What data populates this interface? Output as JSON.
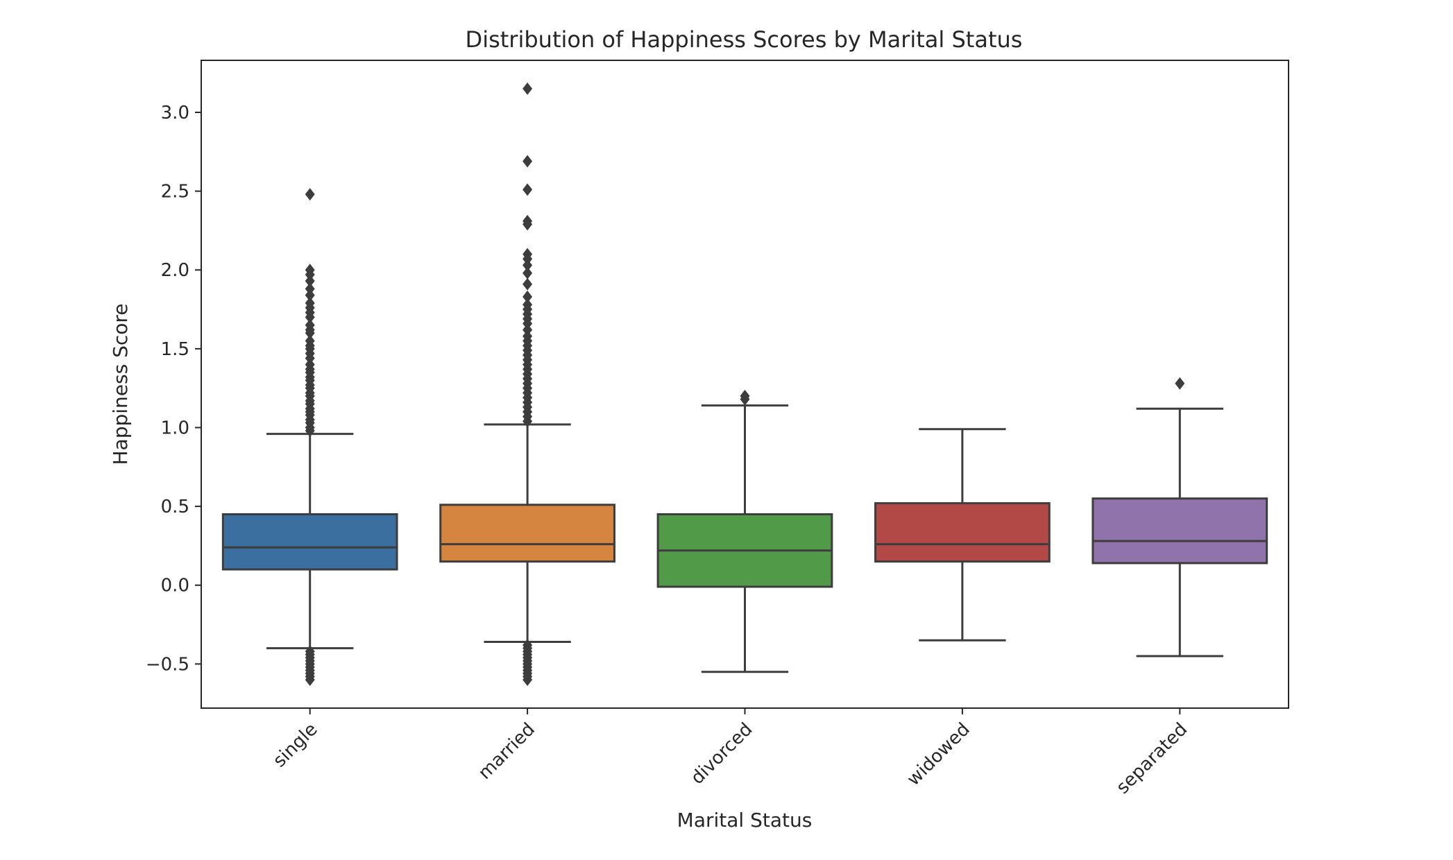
{
  "chart_data": {
    "type": "box",
    "title": "Distribution of Happiness Scores by Marital Status",
    "xlabel": "Marital Status",
    "ylabel": "Happiness Score",
    "ylim": [
      -0.78,
      3.33
    ],
    "yticks": [
      -0.5,
      0.0,
      0.5,
      1.0,
      1.5,
      2.0,
      2.5,
      3.0
    ],
    "ytick_labels": [
      "−0.5",
      "0.0",
      "0.5",
      "1.0",
      "1.5",
      "2.0",
      "2.5",
      "3.0"
    ],
    "grid": false,
    "legend": "none",
    "categories": [
      "single",
      "married",
      "divorced",
      "widowed",
      "separated"
    ],
    "boxes": [
      {
        "name": "single",
        "color": "#3a6f9f",
        "whisker_low": -0.4,
        "q1": 0.1,
        "median": 0.24,
        "q3": 0.45,
        "whisker_high": 0.96,
        "outliers": [
          2.48,
          2.0,
          1.97,
          1.93,
          1.88,
          1.84,
          1.79,
          1.76,
          1.73,
          1.7,
          1.65,
          1.62,
          1.6,
          1.55,
          1.52,
          1.5,
          1.47,
          1.44,
          1.4,
          1.37,
          1.35,
          1.32,
          1.3,
          1.27,
          1.25,
          1.22,
          1.2,
          1.17,
          1.15,
          1.12,
          1.1,
          1.08,
          1.05,
          1.03,
          1.0,
          0.98,
          -0.42,
          -0.44,
          -0.46,
          -0.48,
          -0.5,
          -0.52,
          -0.54,
          -0.56,
          -0.58,
          -0.6
        ]
      },
      {
        "name": "married",
        "color": "#d5853f",
        "whisker_low": -0.36,
        "q1": 0.15,
        "median": 0.26,
        "q3": 0.51,
        "whisker_high": 1.02,
        "outliers": [
          3.15,
          2.69,
          2.51,
          2.31,
          2.29,
          2.1,
          2.07,
          2.03,
          1.98,
          1.91,
          1.83,
          1.78,
          1.75,
          1.72,
          1.69,
          1.66,
          1.62,
          1.58,
          1.55,
          1.52,
          1.49,
          1.46,
          1.43,
          1.4,
          1.37,
          1.34,
          1.31,
          1.28,
          1.25,
          1.22,
          1.19,
          1.16,
          1.13,
          1.1,
          1.07,
          1.04,
          -0.38,
          -0.4,
          -0.42,
          -0.44,
          -0.46,
          -0.48,
          -0.5,
          -0.52,
          -0.54,
          -0.56,
          -0.58,
          -0.6
        ]
      },
      {
        "name": "divorced",
        "color": "#519a48",
        "whisker_low": -0.55,
        "q1": -0.01,
        "median": 0.22,
        "q3": 0.45,
        "whisker_high": 1.14,
        "outliers": [
          1.2,
          1.18
        ]
      },
      {
        "name": "widowed",
        "color": "#b34947",
        "whisker_low": -0.35,
        "q1": 0.15,
        "median": 0.26,
        "q3": 0.52,
        "whisker_high": 0.99,
        "outliers": []
      },
      {
        "name": "separated",
        "color": "#9073ab",
        "whisker_low": -0.45,
        "q1": 0.14,
        "median": 0.28,
        "q3": 0.55,
        "whisker_high": 1.12,
        "outliers": [
          1.28
        ]
      }
    ]
  }
}
